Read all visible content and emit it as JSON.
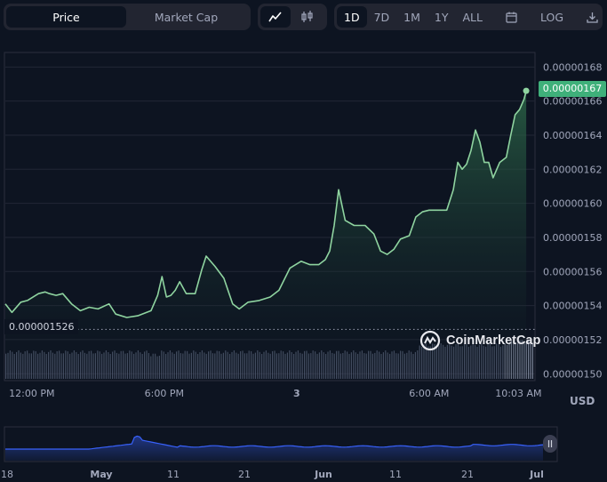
{
  "toolbar": {
    "tabs": [
      {
        "label": "Price",
        "active": true
      },
      {
        "label": "Market Cap",
        "active": false
      }
    ],
    "chart_types": [
      {
        "icon": "line-chart-icon",
        "active": true
      },
      {
        "icon": "candlestick-icon",
        "active": false
      }
    ],
    "ranges": [
      {
        "label": "1D",
        "active": true
      },
      {
        "label": "7D",
        "active": false
      },
      {
        "label": "1M",
        "active": false
      },
      {
        "label": "1Y",
        "active": false
      },
      {
        "label": "ALL",
        "active": false
      }
    ],
    "calendar_icon": "calendar-icon",
    "log_label": "LOG",
    "download_icon": "download-icon"
  },
  "watermark": "CoinMarketCap",
  "currency": "USD",
  "colors": {
    "background": "#0d1421",
    "line": "#8fd4a0",
    "price_tag": "#3fb07a",
    "volume": "#6f7a92",
    "navigator_line": "#3861fb"
  },
  "chart_data": {
    "type": "area",
    "current_price_label": "0.00000167",
    "baseline_label": "0.000001526",
    "baseline_value": 1.526e-06,
    "y_ticks": [
      "0.00000150",
      "0.00000152",
      "0.00000154",
      "0.00000156",
      "0.00000158",
      "0.00000160",
      "0.00000162",
      "0.00000164",
      "0.00000166",
      "0.00000168"
    ],
    "y_tick_values": [
      1.5e-06,
      1.52e-06,
      1.54e-06,
      1.56e-06,
      1.58e-06,
      1.6e-06,
      1.62e-06,
      1.64e-06,
      1.66e-06,
      1.68e-06
    ],
    "ylim": [
      1.497e-06,
      1.688e-06
    ],
    "x_ticks": [
      "12:00 PM",
      "6:00 PM",
      "3",
      "6:00 AM",
      "10:03 AM"
    ],
    "x_tick_hours": [
      1.2,
      7.2,
      13.2,
      19.2,
      23.25
    ],
    "xlim": [
      0,
      24
    ],
    "x": [
      0,
      0.3,
      0.7,
      1.0,
      1.5,
      1.8,
      2.0,
      2.3,
      2.6,
      3.0,
      3.4,
      3.8,
      4.2,
      4.7,
      5.0,
      5.5,
      6.0,
      6.6,
      6.9,
      7.1,
      7.3,
      7.5,
      7.7,
      7.9,
      8.2,
      8.6,
      8.9,
      9.1,
      9.5,
      9.9,
      10.3,
      10.6,
      11.0,
      11.5,
      12.0,
      12.4,
      12.9,
      13.4,
      13.8,
      14.2,
      14.5,
      14.7,
      14.9,
      15.1,
      15.4,
      15.8,
      16.3,
      16.7,
      17.0,
      17.3,
      17.6,
      17.9,
      18.3,
      18.6,
      18.9,
      19.2,
      19.6,
      20.0,
      20.3,
      20.5,
      20.7,
      20.9,
      21.1,
      21.3,
      21.5,
      21.7,
      21.9,
      22.1,
      22.4,
      22.7,
      22.9,
      23.1,
      23.3,
      23.5,
      23.6
    ],
    "price": [
      1.541e-06,
      1.536e-06,
      1.542e-06,
      1.543e-06,
      1.547e-06,
      1.548e-06,
      1.547e-06,
      1.546e-06,
      1.547e-06,
      1.541e-06,
      1.537e-06,
      1.539e-06,
      1.538e-06,
      1.541e-06,
      1.535e-06,
      1.533e-06,
      1.534e-06,
      1.537e-06,
      1.546e-06,
      1.557e-06,
      1.545e-06,
      1.546e-06,
      1.549e-06,
      1.554e-06,
      1.547e-06,
      1.547e-06,
      1.561e-06,
      1.569e-06,
      1.563e-06,
      1.556e-06,
      1.541e-06,
      1.538e-06,
      1.542e-06,
      1.543e-06,
      1.545e-06,
      1.549e-06,
      1.562e-06,
      1.566e-06,
      1.564e-06,
      1.564e-06,
      1.567e-06,
      1.572e-06,
      1.587e-06,
      1.608e-06,
      1.59e-06,
      1.587e-06,
      1.587e-06,
      1.582e-06,
      1.572e-06,
      1.57e-06,
      1.573e-06,
      1.579e-06,
      1.581e-06,
      1.592e-06,
      1.595e-06,
      1.596e-06,
      1.596e-06,
      1.596e-06,
      1.608e-06,
      1.624e-06,
      1.62e-06,
      1.623e-06,
      1.631e-06,
      1.643e-06,
      1.636e-06,
      1.624e-06,
      1.624e-06,
      1.615e-06,
      1.624e-06,
      1.627e-06,
      1.64e-06,
      1.652e-06,
      1.655e-06,
      1.661e-06,
      1.666e-06
    ],
    "navigator_x_ticks": [
      "18",
      "May",
      "11",
      "21",
      "Jun",
      "11",
      "21",
      "Jul"
    ]
  }
}
